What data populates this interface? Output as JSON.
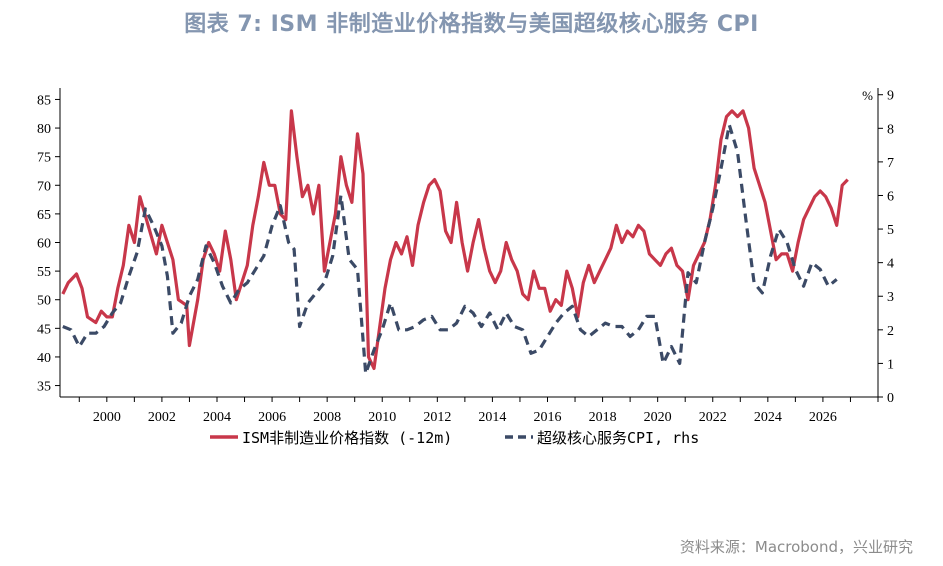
{
  "title": "图表 7: ISM 非制造业价格指数与美国超级核心服务 CPI",
  "source": "资料来源：Macrobond，兴业研究",
  "colors": {
    "ism": "#c8374a",
    "cpi": "#3b4a66",
    "axis": "#000000",
    "title": "#8496b0"
  },
  "chart_data": {
    "type": "line",
    "title": "图表 7: ISM 非制造业价格指数与美国超级核心服务 CPI",
    "x_range": [
      1998.3,
      2028.0
    ],
    "x_ticks": [
      2000,
      2002,
      2004,
      2006,
      2008,
      2010,
      2012,
      2014,
      2016,
      2018,
      2020,
      2022,
      2024,
      2026
    ],
    "y_left": {
      "range": [
        33,
        87
      ],
      "ticks": [
        35,
        40,
        45,
        50,
        55,
        60,
        65,
        70,
        75,
        80,
        85
      ]
    },
    "y_right": {
      "range": [
        0,
        9.2
      ],
      "ticks": [
        0,
        1,
        2,
        3,
        4,
        5,
        6,
        7,
        8,
        9
      ],
      "unit_label": "%"
    },
    "grid": false,
    "legend_position": "bottom",
    "series": [
      {
        "name": "ISM非制造业价格指数 (-12m)",
        "axis": "left",
        "style": "solid",
        "points": [
          [
            1998.4,
            51
          ],
          [
            1998.6,
            53
          ],
          [
            1998.9,
            54.5
          ],
          [
            1999.1,
            52
          ],
          [
            1999.3,
            47
          ],
          [
            1999.6,
            46
          ],
          [
            1999.8,
            48
          ],
          [
            2000.0,
            47
          ],
          [
            2000.2,
            47
          ],
          [
            2000.4,
            52
          ],
          [
            2000.6,
            56
          ],
          [
            2000.8,
            63
          ],
          [
            2001.0,
            60
          ],
          [
            2001.2,
            68
          ],
          [
            2001.5,
            63
          ],
          [
            2001.8,
            58
          ],
          [
            2002.0,
            63
          ],
          [
            2002.2,
            60
          ],
          [
            2002.4,
            57
          ],
          [
            2002.6,
            50
          ],
          [
            2002.9,
            49
          ],
          [
            2003.0,
            42
          ],
          [
            2003.3,
            50
          ],
          [
            2003.5,
            57
          ],
          [
            2003.7,
            60
          ],
          [
            2003.9,
            58
          ],
          [
            2004.1,
            55
          ],
          [
            2004.3,
            62
          ],
          [
            2004.5,
            57
          ],
          [
            2004.7,
            50
          ],
          [
            2004.9,
            53
          ],
          [
            2005.1,
            56
          ],
          [
            2005.3,
            63
          ],
          [
            2005.5,
            68
          ],
          [
            2005.7,
            74
          ],
          [
            2005.9,
            70
          ],
          [
            2006.1,
            70
          ],
          [
            2006.3,
            65
          ],
          [
            2006.5,
            64
          ],
          [
            2006.7,
            83
          ],
          [
            2006.9,
            75
          ],
          [
            2007.1,
            68
          ],
          [
            2007.3,
            70
          ],
          [
            2007.5,
            65
          ],
          [
            2007.7,
            70
          ],
          [
            2007.9,
            55
          ],
          [
            2008.1,
            60
          ],
          [
            2008.3,
            65
          ],
          [
            2008.5,
            75
          ],
          [
            2008.7,
            70
          ],
          [
            2008.9,
            67
          ],
          [
            2009.1,
            79
          ],
          [
            2009.3,
            72
          ],
          [
            2009.5,
            40
          ],
          [
            2009.7,
            38
          ],
          [
            2009.9,
            45
          ],
          [
            2010.1,
            52
          ],
          [
            2010.3,
            57
          ],
          [
            2010.5,
            60
          ],
          [
            2010.7,
            58
          ],
          [
            2010.9,
            61
          ],
          [
            2011.1,
            56
          ],
          [
            2011.3,
            63
          ],
          [
            2011.5,
            67
          ],
          [
            2011.7,
            70
          ],
          [
            2011.9,
            71
          ],
          [
            2012.1,
            69
          ],
          [
            2012.3,
            62
          ],
          [
            2012.5,
            60
          ],
          [
            2012.7,
            67
          ],
          [
            2012.9,
            60
          ],
          [
            2013.1,
            55
          ],
          [
            2013.3,
            60
          ],
          [
            2013.5,
            64
          ],
          [
            2013.7,
            59
          ],
          [
            2013.9,
            55
          ],
          [
            2014.1,
            53
          ],
          [
            2014.3,
            55
          ],
          [
            2014.5,
            60
          ],
          [
            2014.7,
            57
          ],
          [
            2014.9,
            55
          ],
          [
            2015.1,
            51
          ],
          [
            2015.3,
            50
          ],
          [
            2015.5,
            55
          ],
          [
            2015.7,
            52
          ],
          [
            2015.9,
            52
          ],
          [
            2016.1,
            48
          ],
          [
            2016.3,
            50
          ],
          [
            2016.5,
            49
          ],
          [
            2016.7,
            55
          ],
          [
            2016.9,
            52
          ],
          [
            2017.1,
            47
          ],
          [
            2017.3,
            53
          ],
          [
            2017.5,
            56
          ],
          [
            2017.7,
            53
          ],
          [
            2017.9,
            55
          ],
          [
            2018.1,
            57
          ],
          [
            2018.3,
            59
          ],
          [
            2018.5,
            63
          ],
          [
            2018.7,
            60
          ],
          [
            2018.9,
            62
          ],
          [
            2019.1,
            61
          ],
          [
            2019.3,
            63
          ],
          [
            2019.5,
            62
          ],
          [
            2019.7,
            58
          ],
          [
            2019.9,
            57
          ],
          [
            2020.1,
            56
          ],
          [
            2020.3,
            58
          ],
          [
            2020.5,
            59
          ],
          [
            2020.7,
            56
          ],
          [
            2020.9,
            55
          ],
          [
            2021.1,
            50
          ],
          [
            2021.3,
            56
          ],
          [
            2021.5,
            58
          ],
          [
            2021.7,
            60
          ],
          [
            2021.9,
            64
          ],
          [
            2022.1,
            70
          ],
          [
            2022.3,
            78
          ],
          [
            2022.5,
            82
          ],
          [
            2022.7,
            83
          ],
          [
            2022.9,
            82
          ],
          [
            2023.1,
            83
          ],
          [
            2023.3,
            80
          ],
          [
            2023.5,
            73
          ],
          [
            2023.7,
            70
          ],
          [
            2023.9,
            67
          ],
          [
            2024.1,
            62
          ],
          [
            2024.3,
            57
          ],
          [
            2024.5,
            58
          ],
          [
            2024.7,
            58
          ],
          [
            2024.9,
            55
          ],
          [
            2025.1,
            60
          ],
          [
            2025.3,
            64
          ],
          [
            2025.5,
            66
          ],
          [
            2025.7,
            68
          ],
          [
            2025.9,
            69
          ],
          [
            2026.1,
            68
          ],
          [
            2026.3,
            66
          ],
          [
            2026.5,
            63
          ],
          [
            2026.7,
            70
          ],
          [
            2026.9,
            71
          ]
        ]
      },
      {
        "name": "超级核心服务CPI, rhs",
        "axis": "right",
        "style": "dashed",
        "points": [
          [
            1998.4,
            2.1
          ],
          [
            1998.7,
            2.0
          ],
          [
            1999.0,
            1.5
          ],
          [
            1999.3,
            1.9
          ],
          [
            1999.6,
            1.9
          ],
          [
            1999.9,
            2.1
          ],
          [
            2000.2,
            2.5
          ],
          [
            2000.5,
            2.8
          ],
          [
            2000.8,
            3.6
          ],
          [
            2001.1,
            4.3
          ],
          [
            2001.4,
            5.6
          ],
          [
            2001.7,
            5.1
          ],
          [
            2002.0,
            4.5
          ],
          [
            2002.2,
            3.6
          ],
          [
            2002.4,
            1.9
          ],
          [
            2002.7,
            2.2
          ],
          [
            2003.0,
            3.0
          ],
          [
            2003.3,
            3.5
          ],
          [
            2003.6,
            4.5
          ],
          [
            2003.9,
            4.0
          ],
          [
            2004.2,
            3.3
          ],
          [
            2004.5,
            2.8
          ],
          [
            2004.8,
            3.2
          ],
          [
            2005.1,
            3.4
          ],
          [
            2005.4,
            3.8
          ],
          [
            2005.7,
            4.2
          ],
          [
            2006.0,
            5.1
          ],
          [
            2006.3,
            5.7
          ],
          [
            2006.6,
            4.6
          ],
          [
            2006.8,
            4.4
          ],
          [
            2007.0,
            2.1
          ],
          [
            2007.3,
            2.8
          ],
          [
            2007.6,
            3.1
          ],
          [
            2007.9,
            3.4
          ],
          [
            2008.2,
            4.2
          ],
          [
            2008.5,
            6.0
          ],
          [
            2008.8,
            4.1
          ],
          [
            2009.1,
            3.8
          ],
          [
            2009.4,
            0.7
          ],
          [
            2009.7,
            1.4
          ],
          [
            2010.0,
            2.0
          ],
          [
            2010.3,
            2.8
          ],
          [
            2010.6,
            2.0
          ],
          [
            2010.9,
            2.0
          ],
          [
            2011.2,
            2.1
          ],
          [
            2011.5,
            2.3
          ],
          [
            2011.8,
            2.4
          ],
          [
            2012.1,
            2.0
          ],
          [
            2012.4,
            2.0
          ],
          [
            2012.7,
            2.2
          ],
          [
            2013.0,
            2.7
          ],
          [
            2013.3,
            2.5
          ],
          [
            2013.6,
            2.1
          ],
          [
            2013.9,
            2.5
          ],
          [
            2014.2,
            2.0
          ],
          [
            2014.5,
            2.5
          ],
          [
            2014.8,
            2.1
          ],
          [
            2015.1,
            2.0
          ],
          [
            2015.4,
            1.3
          ],
          [
            2015.7,
            1.4
          ],
          [
            2016.0,
            1.8
          ],
          [
            2016.3,
            2.2
          ],
          [
            2016.6,
            2.5
          ],
          [
            2016.9,
            2.7
          ],
          [
            2017.2,
            2.0
          ],
          [
            2017.5,
            1.8
          ],
          [
            2017.8,
            2.0
          ],
          [
            2018.1,
            2.2
          ],
          [
            2018.4,
            2.1
          ],
          [
            2018.7,
            2.1
          ],
          [
            2019.0,
            1.8
          ],
          [
            2019.3,
            2.0
          ],
          [
            2019.6,
            2.4
          ],
          [
            2019.9,
            2.4
          ],
          [
            2020.2,
            1.0
          ],
          [
            2020.5,
            1.5
          ],
          [
            2020.8,
            1.0
          ],
          [
            2021.1,
            3.7
          ],
          [
            2021.4,
            3.4
          ],
          [
            2021.7,
            4.6
          ],
          [
            2022.0,
            5.6
          ],
          [
            2022.3,
            6.8
          ],
          [
            2022.6,
            8.1
          ],
          [
            2022.9,
            7.3
          ],
          [
            2023.2,
            5.3
          ],
          [
            2023.5,
            3.4
          ],
          [
            2023.8,
            3.1
          ],
          [
            2024.1,
            4.2
          ],
          [
            2024.4,
            5.0
          ],
          [
            2024.7,
            4.6
          ],
          [
            2025.0,
            3.8
          ],
          [
            2025.3,
            3.3
          ],
          [
            2025.6,
            4.0
          ],
          [
            2025.9,
            3.8
          ],
          [
            2026.2,
            3.3
          ],
          [
            2026.5,
            3.5
          ]
        ]
      }
    ]
  }
}
